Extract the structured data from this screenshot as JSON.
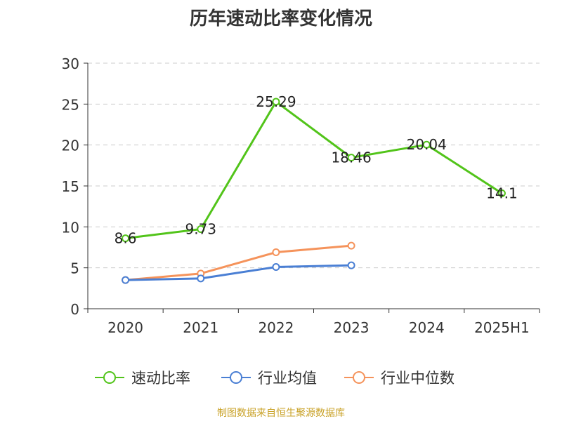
{
  "chart_data": {
    "type": "line",
    "title": "历年速动比率变化情况",
    "categories": [
      "2020",
      "2021",
      "2022",
      "2023",
      "2024",
      "2025H1"
    ],
    "ylim": [
      0,
      30
    ],
    "yticks": [
      0,
      5,
      10,
      15,
      20,
      25,
      30
    ],
    "grid": true,
    "legend_position": "bottom",
    "series": [
      {
        "name": "速动比率",
        "values": [
          8.6,
          9.73,
          25.29,
          18.46,
          20.04,
          14.1
        ],
        "labels": [
          "8.6",
          "9.73",
          "25.29",
          "18.46",
          "20.04",
          "14.1"
        ],
        "color": "#52c41a"
      },
      {
        "name": "行业均值",
        "values": [
          3.5,
          3.7,
          5.1,
          5.3,
          null,
          null
        ],
        "color": "#4a7fd4"
      },
      {
        "name": "行业中位数",
        "values": [
          3.5,
          4.3,
          6.9,
          7.7,
          null,
          null
        ],
        "color": "#f5935b"
      }
    ]
  },
  "footer": {
    "source": "制图数据来自恒生聚源数据库"
  }
}
